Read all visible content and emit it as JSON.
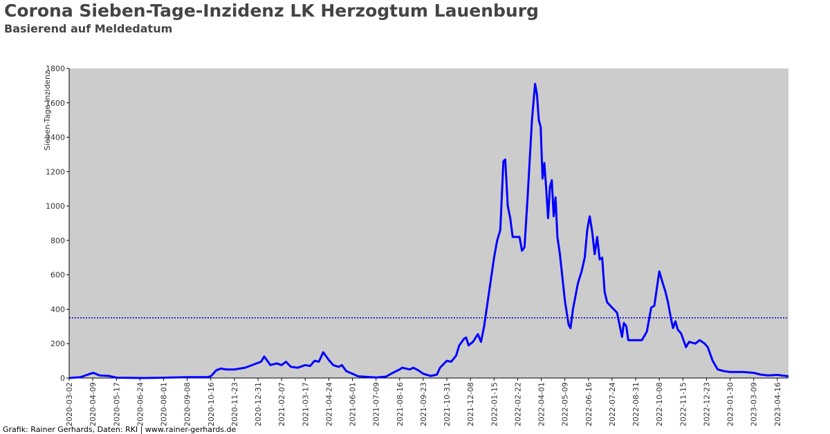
{
  "chart_data": {
    "type": "line",
    "title": "Corona Sieben-Tage-Inzidenz LK Herzogtum Lauenburg",
    "subtitle": "Basierend auf Meldedatum",
    "y_label": "Sieben-Tage-Inzidenz",
    "footer": "Grafik: Rainer Gerhards, Daten: RKI | www.rainer-gerhards.de",
    "color": "#0000ff",
    "threshold": 350,
    "threshold_color": "#0000cc",
    "background": "#cccccc",
    "x": [
      "2020-03-02",
      "2020-03-20",
      "2020-04-05",
      "2020-04-10",
      "2020-04-20",
      "2020-05-05",
      "2020-05-17",
      "2020-07-01",
      "2020-08-01",
      "2020-09-08",
      "2020-10-10",
      "2020-10-16",
      "2020-10-25",
      "2020-11-01",
      "2020-11-10",
      "2020-11-23",
      "2020-12-10",
      "2020-12-25",
      "2021-01-05",
      "2021-01-10",
      "2021-01-20",
      "2021-01-30",
      "2021-02-07",
      "2021-02-14",
      "2021-02-22",
      "2021-03-05",
      "2021-03-17",
      "2021-03-25",
      "2021-04-01",
      "2021-04-08",
      "2021-04-15",
      "2021-04-24",
      "2021-05-01",
      "2021-05-10",
      "2021-05-15",
      "2021-05-22",
      "2021-06-01",
      "2021-06-10",
      "2021-07-09",
      "2021-07-25",
      "2021-08-05",
      "2021-08-16",
      "2021-08-20",
      "2021-09-01",
      "2021-09-07",
      "2021-09-15",
      "2021-09-23",
      "2021-10-05",
      "2021-10-15",
      "2021-10-20",
      "2021-10-31",
      "2021-11-07",
      "2021-11-15",
      "2021-11-20",
      "2021-11-28",
      "2021-12-01",
      "2021-12-05",
      "2021-12-12",
      "2021-12-20",
      "2021-12-25",
      "2021-12-30",
      "2022-01-05",
      "2022-01-15",
      "2022-01-20",
      "2022-01-25",
      "2022-01-30",
      "2022-02-02",
      "2022-02-06",
      "2022-02-10",
      "2022-02-14",
      "2022-02-18",
      "2022-02-25",
      "2022-03-01",
      "2022-03-05",
      "2022-03-10",
      "2022-03-17",
      "2022-03-22",
      "2022-03-25",
      "2022-03-28",
      "2022-03-31",
      "2022-04-03",
      "2022-04-06",
      "2022-04-09",
      "2022-04-12",
      "2022-04-15",
      "2022-04-18",
      "2022-04-21",
      "2022-04-24",
      "2022-04-27",
      "2022-05-01",
      "2022-05-09",
      "2022-05-15",
      "2022-05-18",
      "2022-05-22",
      "2022-05-30",
      "2022-06-05",
      "2022-06-10",
      "2022-06-14",
      "2022-06-18",
      "2022-06-22",
      "2022-06-26",
      "2022-06-30",
      "2022-07-04",
      "2022-07-08",
      "2022-07-12",
      "2022-07-16",
      "2022-07-24",
      "2022-08-01",
      "2022-08-05",
      "2022-08-09",
      "2022-08-12",
      "2022-08-16",
      "2022-08-19",
      "2022-08-31",
      "2022-09-10",
      "2022-09-18",
      "2022-09-25",
      "2022-09-30",
      "2022-10-08",
      "2022-10-12",
      "2022-10-18",
      "2022-10-22",
      "2022-10-26",
      "2022-10-30",
      "2022-11-03",
      "2022-11-07",
      "2022-11-12",
      "2022-11-20",
      "2022-11-25",
      "2022-12-05",
      "2022-12-12",
      "2022-12-20",
      "2022-12-25",
      "2023-01-02",
      "2023-01-10",
      "2023-01-20",
      "2023-01-30",
      "2023-02-20",
      "2023-03-09",
      "2023-03-20",
      "2023-04-01",
      "2023-04-16",
      "2023-05-04"
    ],
    "values": [
      0,
      5,
      25,
      30,
      15,
      12,
      2,
      0,
      2,
      5,
      5,
      10,
      45,
      55,
      50,
      50,
      60,
      80,
      95,
      125,
      75,
      85,
      75,
      95,
      65,
      60,
      75,
      70,
      100,
      95,
      150,
      105,
      75,
      65,
      75,
      40,
      25,
      10,
      3,
      8,
      30,
      50,
      60,
      50,
      60,
      45,
      25,
      12,
      20,
      60,
      100,
      95,
      130,
      190,
      230,
      235,
      190,
      210,
      255,
      210,
      300,
      450,
      700,
      800,
      860,
      1260,
      1270,
      1000,
      930,
      820,
      820,
      820,
      740,
      760,
      1050,
      1500,
      1710,
      1650,
      1500,
      1460,
      1160,
      1250,
      1100,
      930,
      1110,
      1150,
      940,
      1050,
      820,
      720,
      450,
      310,
      290,
      400,
      550,
      620,
      700,
      860,
      940,
      850,
      720,
      820,
      690,
      700,
      500,
      440,
      410,
      380,
      310,
      240,
      320,
      300,
      220,
      220,
      220,
      270,
      410,
      420,
      620,
      570,
      500,
      440,
      360,
      290,
      330,
      280,
      260,
      180,
      210,
      200,
      220,
      200,
      180,
      100,
      50,
      40,
      35,
      35,
      30,
      20,
      15,
      18,
      10
    ],
    "xlim": [
      "2020-03-02",
      "2023-05-04"
    ],
    "xticks": [
      "2020-03-02",
      "2020-04-09",
      "2020-05-17",
      "2020-06-24",
      "2020-08-01",
      "2020-09-08",
      "2020-10-16",
      "2020-11-23",
      "2020-12-31",
      "2021-02-07",
      "2021-03-17",
      "2021-04-24",
      "2021-06-01",
      "2021-07-09",
      "2021-08-16",
      "2021-09-23",
      "2021-10-31",
      "2021-12-08",
      "2022-01-15",
      "2022-02-22",
      "2022-04-01",
      "2022-05-09",
      "2022-06-16",
      "2022-07-24",
      "2022-08-31",
      "2022-10-08",
      "2022-11-15",
      "2022-12-23",
      "2023-01-30",
      "2023-03-09",
      "2023-04-16"
    ],
    "ylim": [
      0,
      1800
    ],
    "yticks": [
      0,
      200,
      400,
      600,
      800,
      1000,
      1200,
      1400,
      1600,
      1800
    ]
  }
}
